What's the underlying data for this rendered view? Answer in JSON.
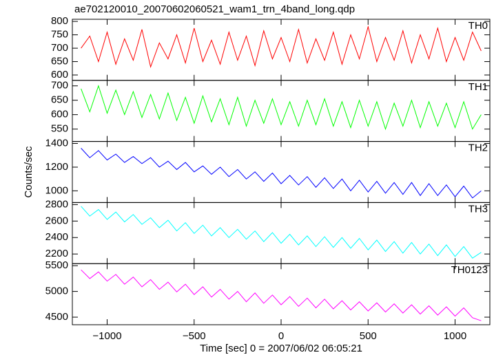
{
  "chart_data": {
    "type": "line",
    "title": "ae702120010_20070602060521_wam1_trn_4band_long.qdp",
    "xlabel": "Time [sec] 0 = 2007/06/02 06:05:21",
    "ylabel": "Counts/sec",
    "xlim": [
      -1200,
      1200
    ],
    "xticks": [
      {
        "value": -1000,
        "label": "−1000"
      },
      {
        "value": -500,
        "label": "−500"
      },
      0,
      500,
      1000
    ],
    "x": [
      -1150,
      -1100,
      -1050,
      -1000,
      -950,
      -900,
      -850,
      -800,
      -750,
      -700,
      -650,
      -600,
      -550,
      -500,
      -450,
      -400,
      -350,
      -300,
      -250,
      -200,
      -150,
      -100,
      -50,
      0,
      50,
      100,
      150,
      200,
      250,
      300,
      350,
      400,
      450,
      500,
      550,
      600,
      650,
      700,
      750,
      800,
      850,
      900,
      950,
      1000,
      1050,
      1100,
      1150
    ],
    "panels": [
      {
        "name": "TH0",
        "color": "#ff0000",
        "ylim": [
          580,
          808
        ],
        "yticks": [
          600,
          650,
          700,
          750,
          800
        ],
        "values": [
          700,
          745,
          650,
          760,
          640,
          735,
          655,
          770,
          630,
          720,
          660,
          750,
          645,
          775,
          650,
          730,
          640,
          760,
          655,
          745,
          635,
          765,
          660,
          740,
          650,
          770,
          645,
          735,
          655,
          760,
          640,
          750,
          660,
          780,
          650,
          740,
          655,
          765,
          645,
          750,
          660,
          775,
          650,
          740,
          655,
          760,
          690
        ]
      },
      {
        "name": "TH1",
        "color": "#00ff00",
        "ylim": [
          507,
          719
        ],
        "yticks": [
          550,
          600,
          650,
          700
        ],
        "values": [
          690,
          610,
          700,
          605,
          685,
          600,
          680,
          590,
          670,
          585,
          675,
          580,
          660,
          570,
          665,
          575,
          655,
          565,
          660,
          560,
          650,
          570,
          655,
          565,
          645,
          560,
          650,
          565,
          655,
          560,
          645,
          555,
          650,
          560,
          645,
          550,
          640,
          560,
          650,
          555,
          645,
          560,
          640,
          555,
          645,
          550,
          600
        ]
      },
      {
        "name": "TH2",
        "color": "#0000ff",
        "ylim": [
          901,
          1417
        ],
        "yticks": [
          1000,
          1200,
          1400
        ],
        "values": [
          1360,
          1280,
          1340,
          1260,
          1310,
          1240,
          1290,
          1230,
          1280,
          1200,
          1250,
          1180,
          1240,
          1160,
          1210,
          1140,
          1200,
          1120,
          1180,
          1100,
          1160,
          1080,
          1150,
          1060,
          1130,
          1050,
          1120,
          1030,
          1110,
          1020,
          1100,
          1000,
          1090,
          990,
          1080,
          980,
          1070,
          970,
          1070,
          960,
          1060,
          960,
          1050,
          950,
          1040,
          940,
          1000
        ]
      },
      {
        "name": "TH3",
        "color": "#00ffff",
        "ylim": [
          2083,
          2825
        ],
        "yticks": [
          2200,
          2400,
          2600,
          2800
        ],
        "values": [
          2780,
          2660,
          2740,
          2620,
          2710,
          2590,
          2680,
          2560,
          2640,
          2520,
          2610,
          2480,
          2580,
          2450,
          2550,
          2420,
          2520,
          2400,
          2500,
          2380,
          2480,
          2350,
          2460,
          2330,
          2440,
          2310,
          2420,
          2290,
          2410,
          2280,
          2400,
          2270,
          2390,
          2250,
          2370,
          2230,
          2350,
          2210,
          2340,
          2200,
          2320,
          2180,
          2310,
          2170,
          2290,
          2150,
          2220
        ]
      },
      {
        "name": "TH0123",
        "color": "#ff00ff",
        "ylim": [
          4353,
          5540
        ],
        "yticks": [
          4500,
          5000,
          5500
        ],
        "values": [
          5420,
          5250,
          5380,
          5200,
          5330,
          5140,
          5280,
          5090,
          5230,
          5040,
          5180,
          4990,
          5140,
          4940,
          5090,
          4890,
          5040,
          4850,
          5000,
          4800,
          4970,
          4770,
          4930,
          4740,
          4900,
          4710,
          4870,
          4680,
          4850,
          4660,
          4820,
          4640,
          4800,
          4620,
          4780,
          4600,
          4760,
          4580,
          4740,
          4560,
          4720,
          4540,
          4700,
          4520,
          4680,
          4490,
          4430
        ]
      }
    ]
  }
}
